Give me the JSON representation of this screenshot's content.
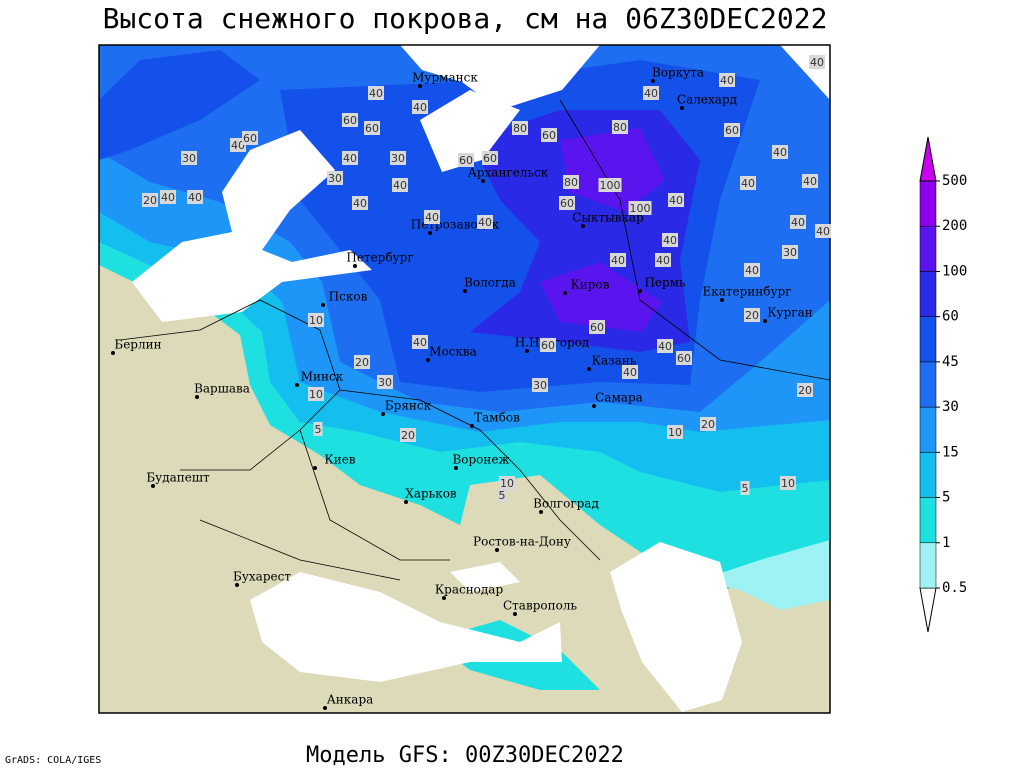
{
  "title": "Высота снежного покрова, см на 06Z30DEC2022",
  "footer_left": "GrADS: COLA/IGES",
  "model": "Модель GFS: 00Z30DEC2022",
  "legend": {
    "levels": [
      0.5,
      1,
      5,
      15,
      30,
      45,
      60,
      100,
      200,
      500
    ],
    "colors": [
      "#ffffff",
      "#9ef2f4",
      "#1ee0e0",
      "#14beee",
      "#1e96f8",
      "#1e6ef2",
      "#1450ea",
      "#2a2ae6",
      "#5a14ee",
      "#8c00ee",
      "#c800ee"
    ]
  },
  "land_color": "#dcdab8",
  "cities": [
    "Мурманск",
    "Воркута",
    "Салехард",
    "Архангельск",
    "Петрозаводск",
    "Сыктывкар",
    "Петербург",
    "Вологда",
    "Киров",
    "Пермь",
    "Екатеринбург",
    "Курган",
    "Псков",
    "Берлин",
    "Н.Новгород",
    "Москва",
    "Казань",
    "Минск",
    "Варшава",
    "Брянск",
    "Самара",
    "Тамбов",
    "Киев",
    "Воронеж",
    "Будапешт",
    "Харьков",
    "Волгоград",
    "Ростов-на-Дону",
    "Бухарест",
    "Краснодар",
    "Ставрополь",
    "Анкара"
  ],
  "contour_labels": [
    40,
    40,
    40,
    40,
    40,
    60,
    60,
    60,
    40,
    60,
    30,
    40,
    30,
    60,
    60,
    80,
    60,
    80,
    80,
    100,
    40,
    40,
    40,
    30,
    40,
    40,
    20,
    40,
    40,
    40,
    40,
    60,
    100,
    40,
    40,
    40,
    40,
    30,
    40,
    40,
    40,
    20,
    10,
    40,
    20,
    30,
    10,
    60,
    60,
    40,
    60,
    40,
    30,
    5,
    20,
    10,
    20,
    20,
    10,
    5,
    10,
    5
  ]
}
